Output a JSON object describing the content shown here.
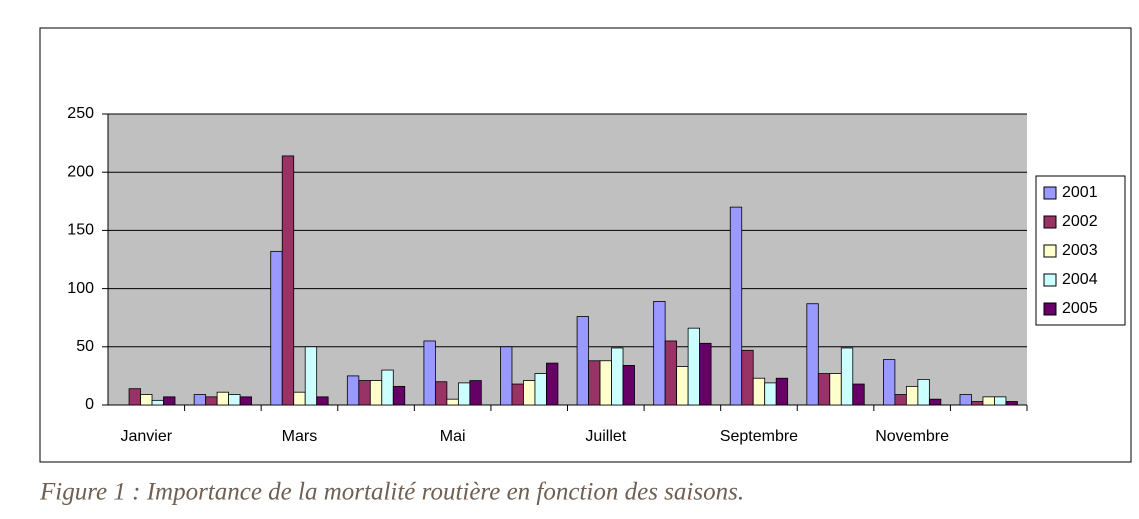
{
  "chart_data": {
    "type": "bar",
    "caption": "Figure 1 : Importance de la mortalité routière en fonction des saisons.",
    "categories": [
      "Janvier",
      null,
      "Mars",
      null,
      "Mai",
      null,
      "Juillet",
      null,
      "Septembre",
      null,
      "Novembre",
      null
    ],
    "series": [
      {
        "name": "2001",
        "color": "#9999ff",
        "values": [
          0,
          9,
          132,
          25,
          55,
          50,
          76,
          89,
          170,
          87,
          39,
          9
        ]
      },
      {
        "name": "2002",
        "color": "#993366",
        "values": [
          14,
          7,
          214,
          21,
          20,
          18,
          38,
          55,
          47,
          27,
          9,
          3
        ]
      },
      {
        "name": "2003",
        "color": "#ffffcc",
        "values": [
          9,
          11,
          11,
          21,
          5,
          21,
          38,
          33,
          23,
          27,
          16,
          7
        ]
      },
      {
        "name": "2004",
        "color": "#ccffff",
        "values": [
          4,
          9,
          50,
          30,
          19,
          27,
          49,
          66,
          19,
          49,
          22,
          7
        ]
      },
      {
        "name": "2005",
        "color": "#660066",
        "values": [
          7,
          7,
          7,
          16,
          21,
          36,
          34,
          53,
          23,
          18,
          5,
          3
        ]
      }
    ],
    "ylim": [
      0,
      250
    ],
    "yticks": [
      0,
      50,
      100,
      150,
      200,
      250
    ],
    "grid": true,
    "legend": "right"
  }
}
